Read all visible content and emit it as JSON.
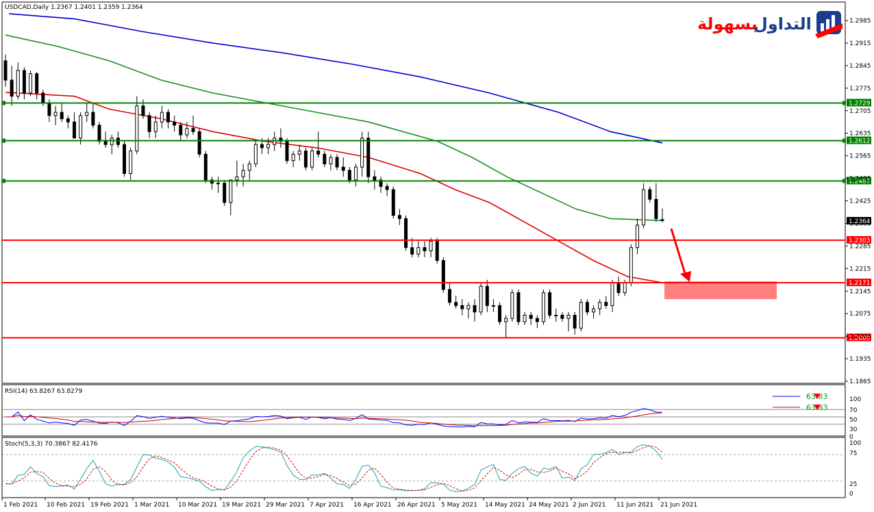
{
  "header": {
    "main_title": "USDCAD,Daily  1.2367 1.2401 1.2359 1.2364"
  },
  "logo": {
    "text_a": "التداول",
    "text_b": "بسهولة"
  },
  "rsi_panel": {
    "title": "RSI(14) 63.8267 63.8279",
    "legend": [
      "63.83",
      "63.83"
    ],
    "ticks": [
      "100",
      "70",
      "50",
      "30",
      "0"
    ]
  },
  "stoch_panel": {
    "title": "Stoch(5,3,3) 70.3867 82.4176",
    "ticks": [
      "100",
      "75",
      "25",
      "0"
    ]
  },
  "colors": {
    "support": "#ff0000",
    "resistance": "#008000",
    "ma_blue": "#0000cc",
    "ma_green": "#1a8f1a",
    "ma_red": "#e00000",
    "zone": "#ff8080",
    "rsi": "#0000ff",
    "rsi_signal": "#cc0000",
    "stoch_main": "#1aa0b0",
    "stoch_signal": "#dd0000"
  },
  "chart_data": {
    "type": "candlestick",
    "symbol": "USDCAD",
    "timeframe": "Daily",
    "ohlc_last": {
      "open": 1.2367,
      "high": 1.2401,
      "low": 1.2359,
      "close": 1.2364
    },
    "ylim": [
      1.1865,
      1.301
    ],
    "y_ticks": [
      "1.2985",
      "1.2915",
      "1.2845",
      "1.2775",
      "1.2705",
      "1.2635",
      "1.2565",
      "1.2495",
      "1.2425",
      "1.2355",
      "1.2285",
      "1.2215",
      "1.2145",
      "1.2075",
      "1.2005",
      "1.1935",
      "1.1865"
    ],
    "x_ticks": [
      "1 Feb 2021",
      "10 Feb 2021",
      "19 Feb 2021",
      "1 Mar 2021",
      "10 Mar 2021",
      "19 Mar 2021",
      "29 Mar 2021",
      "7 Apr 2021",
      "16 Apr 2021",
      "26 Apr 2021",
      "5 May 2021",
      "14 May 2021",
      "24 May 2021",
      "2 Jun 2021",
      "11 Jun 2021",
      "21 Jun 2021"
    ],
    "current_price": "1.2364",
    "horizontal_levels": [
      {
        "value": 1.2729,
        "label": "1.2729",
        "kind": "resistance"
      },
      {
        "value": 1.2612,
        "label": "1.2612",
        "kind": "resistance"
      },
      {
        "value": 1.2487,
        "label": "1.2487",
        "kind": "resistance"
      },
      {
        "value": 1.2303,
        "label": "1.2303",
        "kind": "support"
      },
      {
        "value": 1.2171,
        "label": "1.2171",
        "kind": "support"
      },
      {
        "value": 1.2,
        "label": "1.2000",
        "kind": "support"
      }
    ],
    "target_zone": {
      "from": 1.212,
      "to": 1.2175
    },
    "candles": [
      [
        1.286,
        1.288,
        1.278,
        1.28
      ],
      [
        1.28,
        1.2845,
        1.272,
        1.275
      ],
      [
        1.275,
        1.2855,
        1.274,
        1.283
      ],
      [
        1.283,
        1.284,
        1.274,
        1.276
      ],
      [
        1.276,
        1.283,
        1.275,
        1.282
      ],
      [
        1.282,
        1.2825,
        1.274,
        1.276
      ],
      [
        1.276,
        1.277,
        1.272,
        1.273
      ],
      [
        1.273,
        1.274,
        1.267,
        1.269
      ],
      [
        1.269,
        1.272,
        1.266,
        1.27
      ],
      [
        1.27,
        1.273,
        1.267,
        1.268
      ],
      [
        1.268,
        1.269,
        1.265,
        1.267
      ],
      [
        1.267,
        1.27,
        1.262,
        1.262
      ],
      [
        1.262,
        1.27,
        1.26,
        1.269
      ],
      [
        1.269,
        1.273,
        1.267,
        1.27
      ],
      [
        1.27,
        1.273,
        1.265,
        1.266
      ],
      [
        1.266,
        1.267,
        1.26,
        1.261
      ],
      [
        1.261,
        1.264,
        1.259,
        1.26
      ],
      [
        1.26,
        1.263,
        1.257,
        1.262
      ],
      [
        1.262,
        1.264,
        1.259,
        1.26
      ],
      [
        1.26,
        1.261,
        1.25,
        1.251
      ],
      [
        1.251,
        1.259,
        1.249,
        1.258
      ],
      [
        1.258,
        1.275,
        1.257,
        1.272
      ],
      [
        1.272,
        1.274,
        1.268,
        1.269
      ],
      [
        1.269,
        1.27,
        1.262,
        1.264
      ],
      [
        1.264,
        1.269,
        1.262,
        1.267
      ],
      [
        1.267,
        1.272,
        1.265,
        1.27
      ],
      [
        1.27,
        1.271,
        1.265,
        1.267
      ],
      [
        1.267,
        1.269,
        1.264,
        1.266
      ],
      [
        1.266,
        1.267,
        1.261,
        1.263
      ],
      [
        1.263,
        1.267,
        1.262,
        1.265
      ],
      [
        1.265,
        1.269,
        1.263,
        1.264
      ],
      [
        1.264,
        1.265,
        1.256,
        1.257
      ],
      [
        1.257,
        1.258,
        1.248,
        1.249
      ],
      [
        1.249,
        1.25,
        1.246,
        1.248
      ],
      [
        1.248,
        1.25,
        1.245,
        1.248
      ],
      [
        1.248,
        1.249,
        1.241,
        1.242
      ],
      [
        1.242,
        1.249,
        1.238,
        1.249
      ],
      [
        1.249,
        1.255,
        1.247,
        1.25
      ],
      [
        1.25,
        1.254,
        1.247,
        1.252
      ],
      [
        1.252,
        1.255,
        1.249,
        1.254
      ],
      [
        1.254,
        1.261,
        1.253,
        1.26
      ],
      [
        1.26,
        1.262,
        1.257,
        1.259
      ],
      [
        1.259,
        1.262,
        1.257,
        1.26
      ],
      [
        1.26,
        1.264,
        1.258,
        1.262
      ],
      [
        1.262,
        1.265,
        1.259,
        1.261
      ],
      [
        1.261,
        1.262,
        1.254,
        1.255
      ],
      [
        1.255,
        1.258,
        1.253,
        1.257
      ],
      [
        1.257,
        1.26,
        1.255,
        1.258
      ],
      [
        1.258,
        1.259,
        1.252,
        1.253
      ],
      [
        1.253,
        1.259,
        1.252,
        1.258
      ],
      [
        1.258,
        1.264,
        1.256,
        1.257
      ],
      [
        1.257,
        1.258,
        1.253,
        1.254
      ],
      [
        1.254,
        1.257,
        1.252,
        1.256
      ],
      [
        1.256,
        1.257,
        1.252,
        1.253
      ],
      [
        1.253,
        1.256,
        1.25,
        1.252
      ],
      [
        1.252,
        1.253,
        1.248,
        1.249
      ],
      [
        1.249,
        1.254,
        1.247,
        1.253
      ],
      [
        1.253,
        1.264,
        1.25,
        1.262
      ],
      [
        1.262,
        1.264,
        1.248,
        1.25
      ],
      [
        1.25,
        1.252,
        1.246,
        1.249
      ],
      [
        1.249,
        1.25,
        1.245,
        1.247
      ],
      [
        1.247,
        1.248,
        1.244,
        1.246
      ],
      [
        1.246,
        1.247,
        1.237,
        1.238
      ],
      [
        1.238,
        1.24,
        1.235,
        1.237
      ],
      [
        1.237,
        1.238,
        1.227,
        1.228
      ],
      [
        1.228,
        1.231,
        1.225,
        1.226
      ],
      [
        1.226,
        1.23,
        1.225,
        1.228
      ],
      [
        1.228,
        1.23,
        1.225,
        1.227
      ],
      [
        1.227,
        1.231,
        1.225,
        1.23
      ],
      [
        1.23,
        1.231,
        1.223,
        1.224
      ],
      [
        1.224,
        1.225,
        1.214,
        1.215
      ],
      [
        1.215,
        1.217,
        1.21,
        1.211
      ],
      [
        1.211,
        1.213,
        1.209,
        1.21
      ],
      [
        1.21,
        1.212,
        1.207,
        1.209
      ],
      [
        1.209,
        1.211,
        1.206,
        1.21
      ],
      [
        1.21,
        1.212,
        1.205,
        1.208
      ],
      [
        1.208,
        1.217,
        1.207,
        1.216
      ],
      [
        1.216,
        1.218,
        1.208,
        1.21
      ],
      [
        1.21,
        1.212,
        1.208,
        1.21
      ],
      [
        1.21,
        1.211,
        1.204,
        1.205
      ],
      [
        1.205,
        1.207,
        1.2,
        1.206
      ],
      [
        1.206,
        1.215,
        1.205,
        1.214
      ],
      [
        1.214,
        1.215,
        1.204,
        1.205
      ],
      [
        1.205,
        1.208,
        1.204,
        1.207
      ],
      [
        1.207,
        1.208,
        1.204,
        1.206
      ],
      [
        1.206,
        1.207,
        1.203,
        1.205
      ],
      [
        1.205,
        1.215,
        1.204,
        1.214
      ],
      [
        1.214,
        1.215,
        1.206,
        1.207
      ],
      [
        1.207,
        1.209,
        1.205,
        1.207
      ],
      [
        1.207,
        1.208,
        1.205,
        1.206
      ],
      [
        1.206,
        1.208,
        1.202,
        1.207
      ],
      [
        1.207,
        1.208,
        1.201,
        1.203
      ],
      [
        1.203,
        1.212,
        1.202,
        1.211
      ],
      [
        1.211,
        1.212,
        1.207,
        1.208
      ],
      [
        1.208,
        1.21,
        1.206,
        1.209
      ],
      [
        1.209,
        1.212,
        1.207,
        1.211
      ],
      [
        1.211,
        1.213,
        1.209,
        1.21
      ],
      [
        1.21,
        1.218,
        1.208,
        1.217
      ],
      [
        1.217,
        1.219,
        1.213,
        1.214
      ],
      [
        1.214,
        1.218,
        1.213,
        1.217
      ],
      [
        1.217,
        1.229,
        1.216,
        1.228
      ],
      [
        1.228,
        1.237,
        1.226,
        1.235
      ],
      [
        1.235,
        1.248,
        1.234,
        1.246
      ],
      [
        1.246,
        1.247,
        1.242,
        1.243
      ],
      [
        1.243,
        1.248,
        1.236,
        1.237
      ],
      [
        1.2367,
        1.2401,
        1.2359,
        1.2364
      ]
    ],
    "moving_averages": [
      {
        "color": "blue",
        "points": [
          [
            1,
            1.3006
          ],
          [
            20,
            1.299
          ],
          [
            40,
            1.295
          ],
          [
            60,
            1.2915
          ],
          [
            80,
            1.2885
          ],
          [
            100,
            1.285
          ],
          [
            120,
            1.281
          ],
          [
            140,
            1.276
          ],
          [
            160,
            1.27
          ],
          [
            175,
            1.264
          ],
          [
            190,
            1.2605
          ]
        ]
      },
      {
        "color": "green",
        "points": [
          [
            0,
            1.294
          ],
          [
            15,
            1.2905
          ],
          [
            30,
            1.286
          ],
          [
            45,
            1.28
          ],
          [
            60,
            1.276
          ],
          [
            75,
            1.273
          ],
          [
            90,
            1.27
          ],
          [
            105,
            1.267
          ],
          [
            115,
            1.264
          ],
          [
            125,
            1.261
          ],
          [
            135,
            1.256
          ],
          [
            145,
            1.25
          ],
          [
            155,
            1.245
          ],
          [
            165,
            1.24
          ],
          [
            175,
            1.237
          ],
          [
            190,
            1.2364
          ]
        ]
      },
      {
        "color": "red",
        "points": [
          [
            0,
            1.2762
          ],
          [
            20,
            1.275
          ],
          [
            30,
            1.271
          ],
          [
            45,
            1.268
          ],
          [
            60,
            1.264
          ],
          [
            75,
            1.261
          ],
          [
            90,
            1.259
          ],
          [
            105,
            1.256
          ],
          [
            120,
            1.251
          ],
          [
            130,
            1.246
          ],
          [
            140,
            1.242
          ],
          [
            150,
            1.236
          ],
          [
            160,
            1.23
          ],
          [
            170,
            1.224
          ],
          [
            180,
            1.219
          ],
          [
            190,
            1.2171
          ]
        ]
      }
    ],
    "rsi": {
      "ylim": [
        0,
        100
      ],
      "levels": [
        70,
        50,
        30
      ],
      "last": 63.83
    },
    "stochastic": {
      "ylim": [
        0,
        100
      ],
      "levels": [
        75,
        25
      ],
      "last_main": 70.3867,
      "last_signal": 82.4176
    }
  }
}
